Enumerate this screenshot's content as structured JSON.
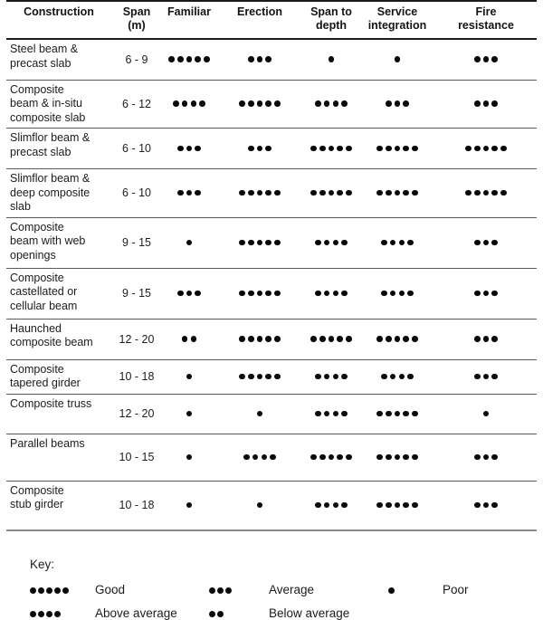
{
  "table": {
    "headers": [
      {
        "key": "construction",
        "label": "Construction"
      },
      {
        "key": "span",
        "label": "Span\n(m)"
      },
      {
        "key": "familiar",
        "label": "Familiar"
      },
      {
        "key": "erection",
        "label": "Erection"
      },
      {
        "key": "span-to-depth",
        "label": "Span to\ndepth"
      },
      {
        "key": "service-integration",
        "label": "Service\nintegration"
      },
      {
        "key": "fire-resistance",
        "label": "Fire\nresistance"
      }
    ],
    "rating_columns": [
      "familiar",
      "erection",
      "span-to-depth",
      "service-integration",
      "fire-resistance"
    ],
    "rows": [
      {
        "construction": "Steel beam &\nprecast slab",
        "span": "6 - 9",
        "ratings": [
          5,
          3,
          1,
          1,
          3
        ]
      },
      {
        "construction": "Composite\nbeam & in-situ\ncomposite slab",
        "span": "6 - 12",
        "ratings": [
          4,
          5,
          4,
          3,
          3
        ]
      },
      {
        "construction": "Slimflor beam &\nprecast slab",
        "span": "6 - 10",
        "ratings": [
          3,
          3,
          5,
          5,
          5
        ]
      },
      {
        "construction": "Slimflor beam &\ndeep composite\nslab",
        "span": "6 - 10",
        "ratings": [
          3,
          5,
          5,
          5,
          5
        ]
      },
      {
        "construction": "Composite\nbeam with web\nopenings",
        "span": "9 - 15",
        "ratings": [
          1,
          5,
          4,
          4,
          3
        ]
      },
      {
        "construction": "Composite\ncastellated or\ncellular beam",
        "span": "9 - 15",
        "ratings": [
          3,
          5,
          4,
          4,
          3
        ]
      },
      {
        "construction": "Haunched\ncomposite beam",
        "span": "12 - 20",
        "ratings": [
          2,
          5,
          5,
          5,
          3
        ]
      },
      {
        "construction": "Composite\ntapered girder",
        "span": "10 - 18",
        "ratings": [
          1,
          5,
          4,
          4,
          3
        ]
      },
      {
        "construction": "Composite truss",
        "span": "12 - 20",
        "ratings": [
          1,
          1,
          4,
          5,
          1
        ]
      },
      {
        "construction": "Parallel beams",
        "span": "10 - 15",
        "ratings": [
          1,
          4,
          5,
          5,
          3
        ]
      },
      {
        "construction": "Composite\nstub girder",
        "span": "10 - 18",
        "ratings": [
          1,
          1,
          4,
          5,
          3
        ]
      }
    ]
  },
  "key": {
    "title": "Key:",
    "items": [
      {
        "dots": 5,
        "label": "Good"
      },
      {
        "dots": 3,
        "label": "Average"
      },
      {
        "dots": 1,
        "label": "Poor"
      },
      {
        "dots": 4,
        "label": "Above average"
      },
      {
        "dots": 2,
        "label": "Below average"
      }
    ]
  },
  "colors": {
    "text": "#1c1c1c",
    "dot": "#0a0a0a",
    "rule_dark": "#1a1a1a",
    "rule_mid": "#5a5a5a",
    "rule_light": "#8a8a8a"
  }
}
